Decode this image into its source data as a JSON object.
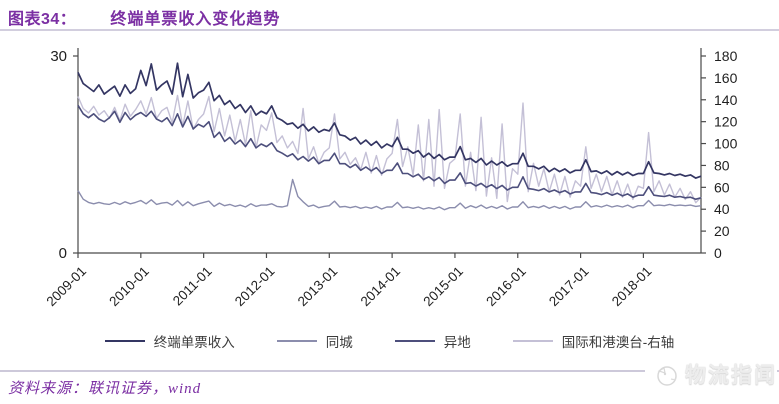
{
  "header": {
    "label": "图表34：",
    "title": "终端单票收入变化趋势"
  },
  "chart_data": {
    "type": "line",
    "title": "终端单票收入变化趋势",
    "x_start": "2009-01",
    "x_end": "2018-12",
    "x_frequency": "monthly",
    "x_tick_labels": [
      "2009-01",
      "2010-01",
      "2011-01",
      "2012-01",
      "2013-01",
      "2014-01",
      "2015-01",
      "2016-01",
      "2017-01",
      "2018-01"
    ],
    "left_axis": {
      "min": 0,
      "max": 30,
      "tick_labels": [
        "0",
        "30"
      ]
    },
    "right_axis": {
      "min": 0,
      "max": 180,
      "step": 20
    },
    "grid": "off",
    "legend_position": "bottom",
    "series": [
      {
        "key": "zhongduan",
        "name": "终端单票收入",
        "axis": "left",
        "color": "#343663",
        "width": 1.7,
        "values": [
          27.5,
          25.8,
          25.2,
          24.6,
          25.6,
          24.2,
          24.8,
          25.4,
          23.9,
          25.6,
          24.3,
          25.0,
          27.8,
          25.5,
          28.8,
          24.8,
          25.6,
          26.2,
          24.2,
          28.9,
          23.8,
          27.2,
          23.6,
          24.4,
          24.8,
          26.0,
          23.2,
          24.0,
          22.6,
          23.2,
          22.0,
          22.6,
          21.4,
          22.4,
          21.0,
          21.6,
          21.2,
          22.4,
          20.6,
          20.2,
          19.6,
          19.8,
          19.0,
          19.6,
          18.6,
          19.2,
          18.4,
          18.8,
          18.6,
          19.8,
          18.0,
          17.8,
          17.2,
          17.6,
          16.6,
          17.2,
          16.4,
          17.0,
          16.0,
          16.6,
          16.2,
          17.6,
          15.8,
          15.8,
          15.2,
          15.6,
          14.6,
          15.2,
          14.4,
          15.0,
          14.2,
          14.6,
          14.6,
          16.2,
          14.2,
          14.4,
          13.8,
          14.4,
          13.4,
          14.0,
          13.4,
          13.9,
          13.2,
          13.6,
          13.6,
          15.2,
          13.2,
          13.2,
          12.8,
          13.2,
          12.4,
          12.9,
          12.4,
          12.8,
          12.2,
          12.6,
          12.6,
          14.2,
          12.4,
          12.5,
          12.1,
          12.5,
          11.9,
          12.4,
          11.9,
          12.3,
          11.8,
          12.1,
          12.1,
          13.9,
          12.2,
          12.1,
          11.9,
          12.1,
          11.8,
          12.0,
          11.7,
          11.9,
          11.4,
          11.7
        ]
      },
      {
        "key": "tongcheng",
        "name": "同城",
        "axis": "left",
        "color": "#8b8dad",
        "width": 1.4,
        "values": [
          9.5,
          8.2,
          7.7,
          7.5,
          7.7,
          7.5,
          7.4,
          7.7,
          7.4,
          7.8,
          7.5,
          7.7,
          8.0,
          7.5,
          8.1,
          7.4,
          7.6,
          7.7,
          7.3,
          8.0,
          7.2,
          7.8,
          7.2,
          7.5,
          7.7,
          7.9,
          7.1,
          7.6,
          7.2,
          7.4,
          7.1,
          7.3,
          7.0,
          7.5,
          7.1,
          7.3,
          7.3,
          7.5,
          7.1,
          7.0,
          7.2,
          11.2,
          8.6,
          7.8,
          7.1,
          7.3,
          6.9,
          7.1,
          7.2,
          7.9,
          7.0,
          7.1,
          6.9,
          7.1,
          6.8,
          7.0,
          6.8,
          7.1,
          6.7,
          7.0,
          7.0,
          7.7,
          6.9,
          7.0,
          6.8,
          7.0,
          6.7,
          6.9,
          6.7,
          7.0,
          6.6,
          6.9,
          6.9,
          7.6,
          6.8,
          7.2,
          6.9,
          7.3,
          6.8,
          7.1,
          6.8,
          7.2,
          6.7,
          7.0,
          7.0,
          7.8,
          6.9,
          7.1,
          6.9,
          7.2,
          6.8,
          7.1,
          6.8,
          7.1,
          6.7,
          7.0,
          7.0,
          7.8,
          7.0,
          7.2,
          7.0,
          7.3,
          7.0,
          7.2,
          7.0,
          7.3,
          6.9,
          7.2,
          7.2,
          8.0,
          7.2,
          7.3,
          7.2,
          7.4,
          7.2,
          7.3,
          7.2,
          7.3,
          7.1,
          7.2
        ]
      },
      {
        "key": "yidi",
        "name": "异地",
        "axis": "left",
        "color": "#4d4f7c",
        "width": 1.6,
        "values": [
          22.5,
          21.2,
          20.6,
          21.2,
          20.4,
          20.0,
          20.6,
          21.6,
          19.9,
          21.4,
          20.3,
          21.0,
          21.4,
          20.8,
          21.6,
          20.4,
          20.0,
          20.6,
          19.4,
          21.2,
          19.2,
          20.8,
          18.9,
          19.6,
          19.2,
          20.0,
          17.6,
          18.4,
          17.0,
          17.6,
          16.6,
          17.2,
          16.2,
          17.4,
          16.0,
          16.6,
          16.2,
          16.8,
          15.6,
          15.2,
          14.7,
          15.1,
          14.2,
          14.7,
          14.0,
          14.6,
          13.6,
          14.1,
          14.1,
          15.2,
          13.6,
          13.6,
          13.0,
          13.5,
          12.6,
          13.1,
          12.5,
          13.0,
          12.1,
          12.6,
          12.6,
          13.7,
          12.1,
          12.1,
          11.6,
          12.0,
          11.2,
          11.6,
          11.0,
          11.5,
          10.6,
          11.1,
          11.1,
          12.2,
          10.6,
          10.7,
          10.2,
          10.6,
          10.0,
          10.4,
          9.8,
          10.3,
          9.6,
          10.0,
          10.0,
          11.6,
          9.8,
          9.7,
          9.5,
          9.8,
          9.3,
          9.6,
          9.2,
          9.5,
          9.0,
          9.3,
          9.3,
          10.6,
          9.2,
          9.1,
          8.9,
          9.2,
          8.8,
          9.1,
          8.7,
          9.0,
          8.5,
          8.8,
          8.8,
          10.1,
          8.8,
          8.7,
          8.6,
          8.8,
          8.5,
          8.6,
          8.4,
          8.5,
          8.2,
          8.4
        ]
      },
      {
        "key": "guoji",
        "name": "国际和港澳台-右轴",
        "axis": "right",
        "color": "#c4c0d6",
        "width": 1.4,
        "values": [
          143,
          132,
          128,
          134,
          126,
          130,
          123,
          133,
          121,
          136,
          125,
          131,
          139,
          127,
          142,
          123,
          130,
          133,
          119,
          144,
          116,
          139,
          113,
          122,
          127,
          143,
          111,
          132,
          107,
          126,
          102,
          122,
          99,
          130,
          96,
          117,
          112,
          128,
          101,
          107,
          96,
          102,
          91,
          132,
          86,
          97,
          82,
          92,
          96,
          127,
          86,
          92,
          81,
          87,
          76,
          92,
          73,
          89,
          71,
          86,
          91,
          122,
          79,
          97,
          71,
          117,
          66,
          122,
          61,
          131,
          59,
          82,
          86,
          127,
          61,
          92,
          57,
          124,
          52,
          87,
          50,
          118,
          47,
          77,
          72,
          137,
          56,
          82,
          61,
          77,
          56,
          72,
          53,
          70,
          51,
          66,
          61,
          97,
          59,
          72,
          56,
          70,
          53,
          66,
          51,
          63,
          49,
          61,
          59,
          110,
          56,
          66,
          53,
          63,
          51,
          59,
          49,
          56,
          46,
          51
        ]
      }
    ],
    "draw_order": [
      3,
      1,
      2,
      0
    ]
  },
  "footer": {
    "source": "资料来源：联讯证券，wind"
  },
  "watermark": {
    "text": "物流指闻"
  }
}
